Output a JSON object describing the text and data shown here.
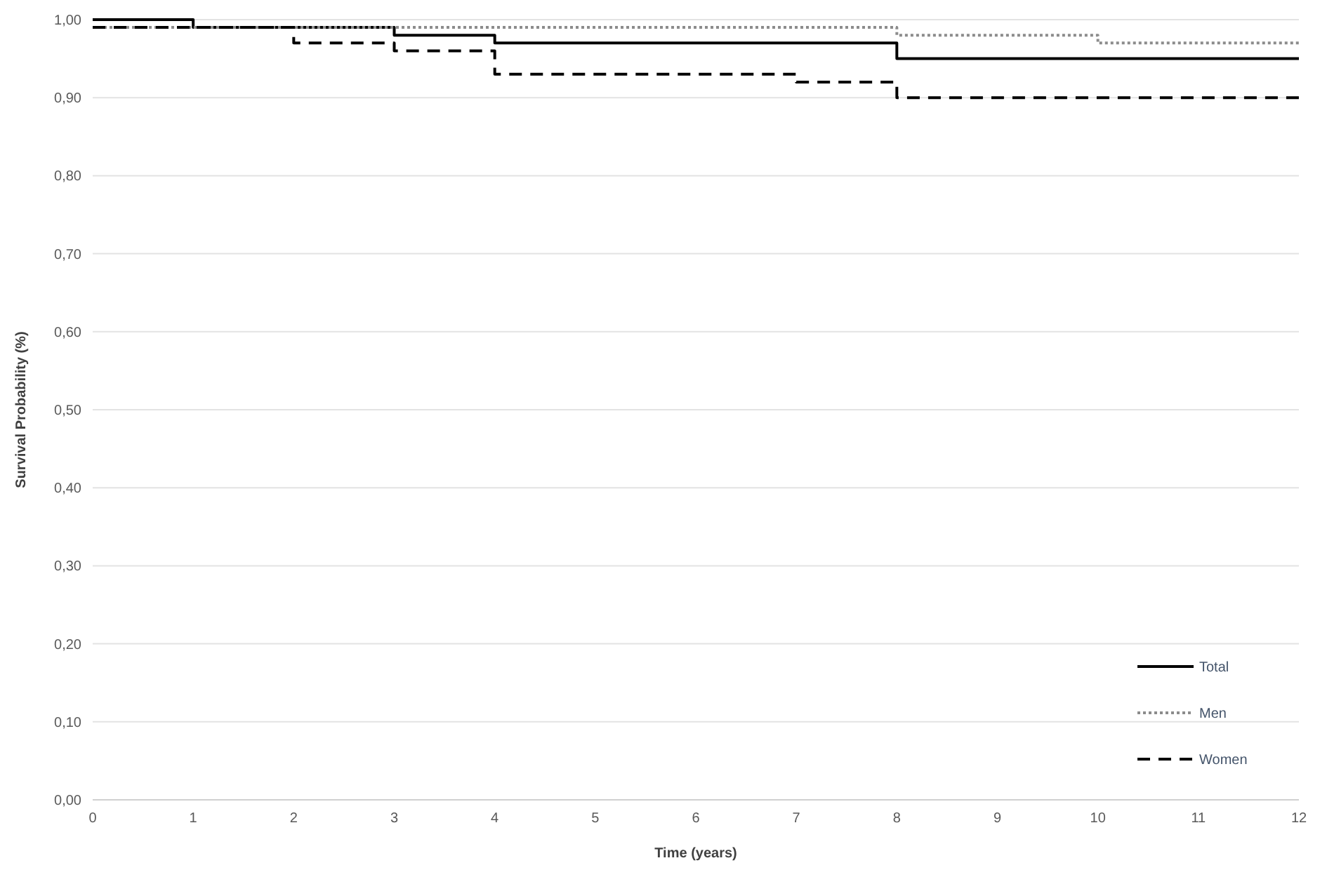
{
  "chart_data": {
    "type": "step",
    "xlabel": "Time (years)",
    "ylabel": "Survival Probability (%)",
    "xlim": [
      0,
      12
    ],
    "xticks": [
      0,
      1,
      2,
      3,
      4,
      5,
      6,
      7,
      8,
      9,
      10,
      11,
      12
    ],
    "ylim": [
      0,
      1
    ],
    "yticks": [
      {
        "value": 0,
        "label": "0,00"
      },
      {
        "value": 0.1,
        "label": "0,10"
      },
      {
        "value": 0.2,
        "label": "0,20"
      },
      {
        "value": 0.3,
        "label": "0,30"
      },
      {
        "value": 0.4,
        "label": "0,40"
      },
      {
        "value": 0.5,
        "label": "0,50"
      },
      {
        "value": 0.6,
        "label": "0,60"
      },
      {
        "value": 0.7,
        "label": "0,70"
      },
      {
        "value": 0.8,
        "label": "0,80"
      },
      {
        "value": 0.9,
        "label": "0,90"
      },
      {
        "value": 1,
        "label": "1,00"
      }
    ],
    "grid": "y",
    "legend": "bottom right",
    "marker": "none",
    "series": [
      {
        "name": "Total",
        "color": "#000000",
        "line_style": "solid",
        "x": [
          0,
          1,
          3,
          4,
          8,
          12
        ],
        "values": [
          1.0,
          0.99,
          0.98,
          0.97,
          0.95,
          0.95
        ]
      },
      {
        "name": "Men",
        "color": "#8c8c8c",
        "line_style": "dotted",
        "x": [
          0,
          8,
          10,
          12
        ],
        "values": [
          0.99,
          0.98,
          0.97,
          0.97
        ]
      },
      {
        "name": "Women",
        "color": "#000000",
        "line_style": "dashed",
        "x": [
          0,
          2,
          3,
          4,
          7,
          8,
          12
        ],
        "values": [
          0.99,
          0.97,
          0.96,
          0.93,
          0.92,
          0.9,
          0.9
        ]
      }
    ]
  }
}
